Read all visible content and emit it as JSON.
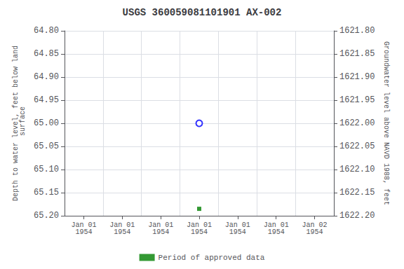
{
  "chart_data": {
    "type": "scatter",
    "title": "USGS 360059081101901 AX-002",
    "ylabel": "Depth to water level, feet below land\n surface",
    "y2label": "Groundwater level above NAVD 1988, feet",
    "categories": [
      "Jan 01\n1954",
      "Jan 01\n1954",
      "Jan 01\n1954",
      "Jan 01\n1954",
      "Jan 01\n1954",
      "Jan 01\n1954",
      "Jan 02\n1954"
    ],
    "series": [
      {
        "color": "blue",
        "marker": "open_circle",
        "values": [
          null,
          null,
          null,
          65.0,
          null,
          null,
          null
        ]
      },
      {
        "name": "Period of approved data",
        "color": "#008000",
        "marker": "square",
        "values": [
          null,
          null,
          null,
          65.185,
          null,
          null,
          null
        ]
      }
    ],
    "ylim": [
      65.2,
      64.8
    ],
    "yticks": [
      {
        "value": 64.8,
        "label": "64.80"
      },
      {
        "value": 64.85,
        "label": "64.85"
      },
      {
        "value": 64.9,
        "label": "64.90"
      },
      {
        "value": 64.95,
        "label": "64.95"
      },
      {
        "value": 65.0,
        "label": "65.00"
      },
      {
        "value": 65.05,
        "label": "65.05"
      },
      {
        "value": 65.1,
        "label": "65.10"
      },
      {
        "value": 65.15,
        "label": "65.15"
      },
      {
        "value": 65.2,
        "label": "65.20"
      }
    ],
    "y2lim": [
      1622.2,
      1621.8
    ],
    "y2ticks": [
      {
        "value": 1622.2,
        "label": "1622.20"
      },
      {
        "value": 1622.15,
        "label": "1622.15"
      },
      {
        "value": 1622.1,
        "label": "1622.10"
      },
      {
        "value": 1622.05,
        "label": "1622.05"
      },
      {
        "value": 1622.0,
        "label": "1622.00"
      },
      {
        "value": 1621.95,
        "label": "1621.95"
      },
      {
        "value": 1621.9,
        "label": "1621.90"
      },
      {
        "value": 1621.85,
        "label": "1621.85"
      },
      {
        "value": 1621.8,
        "label": "1621.80"
      }
    ],
    "grid": true,
    "legend": "bottom"
  }
}
